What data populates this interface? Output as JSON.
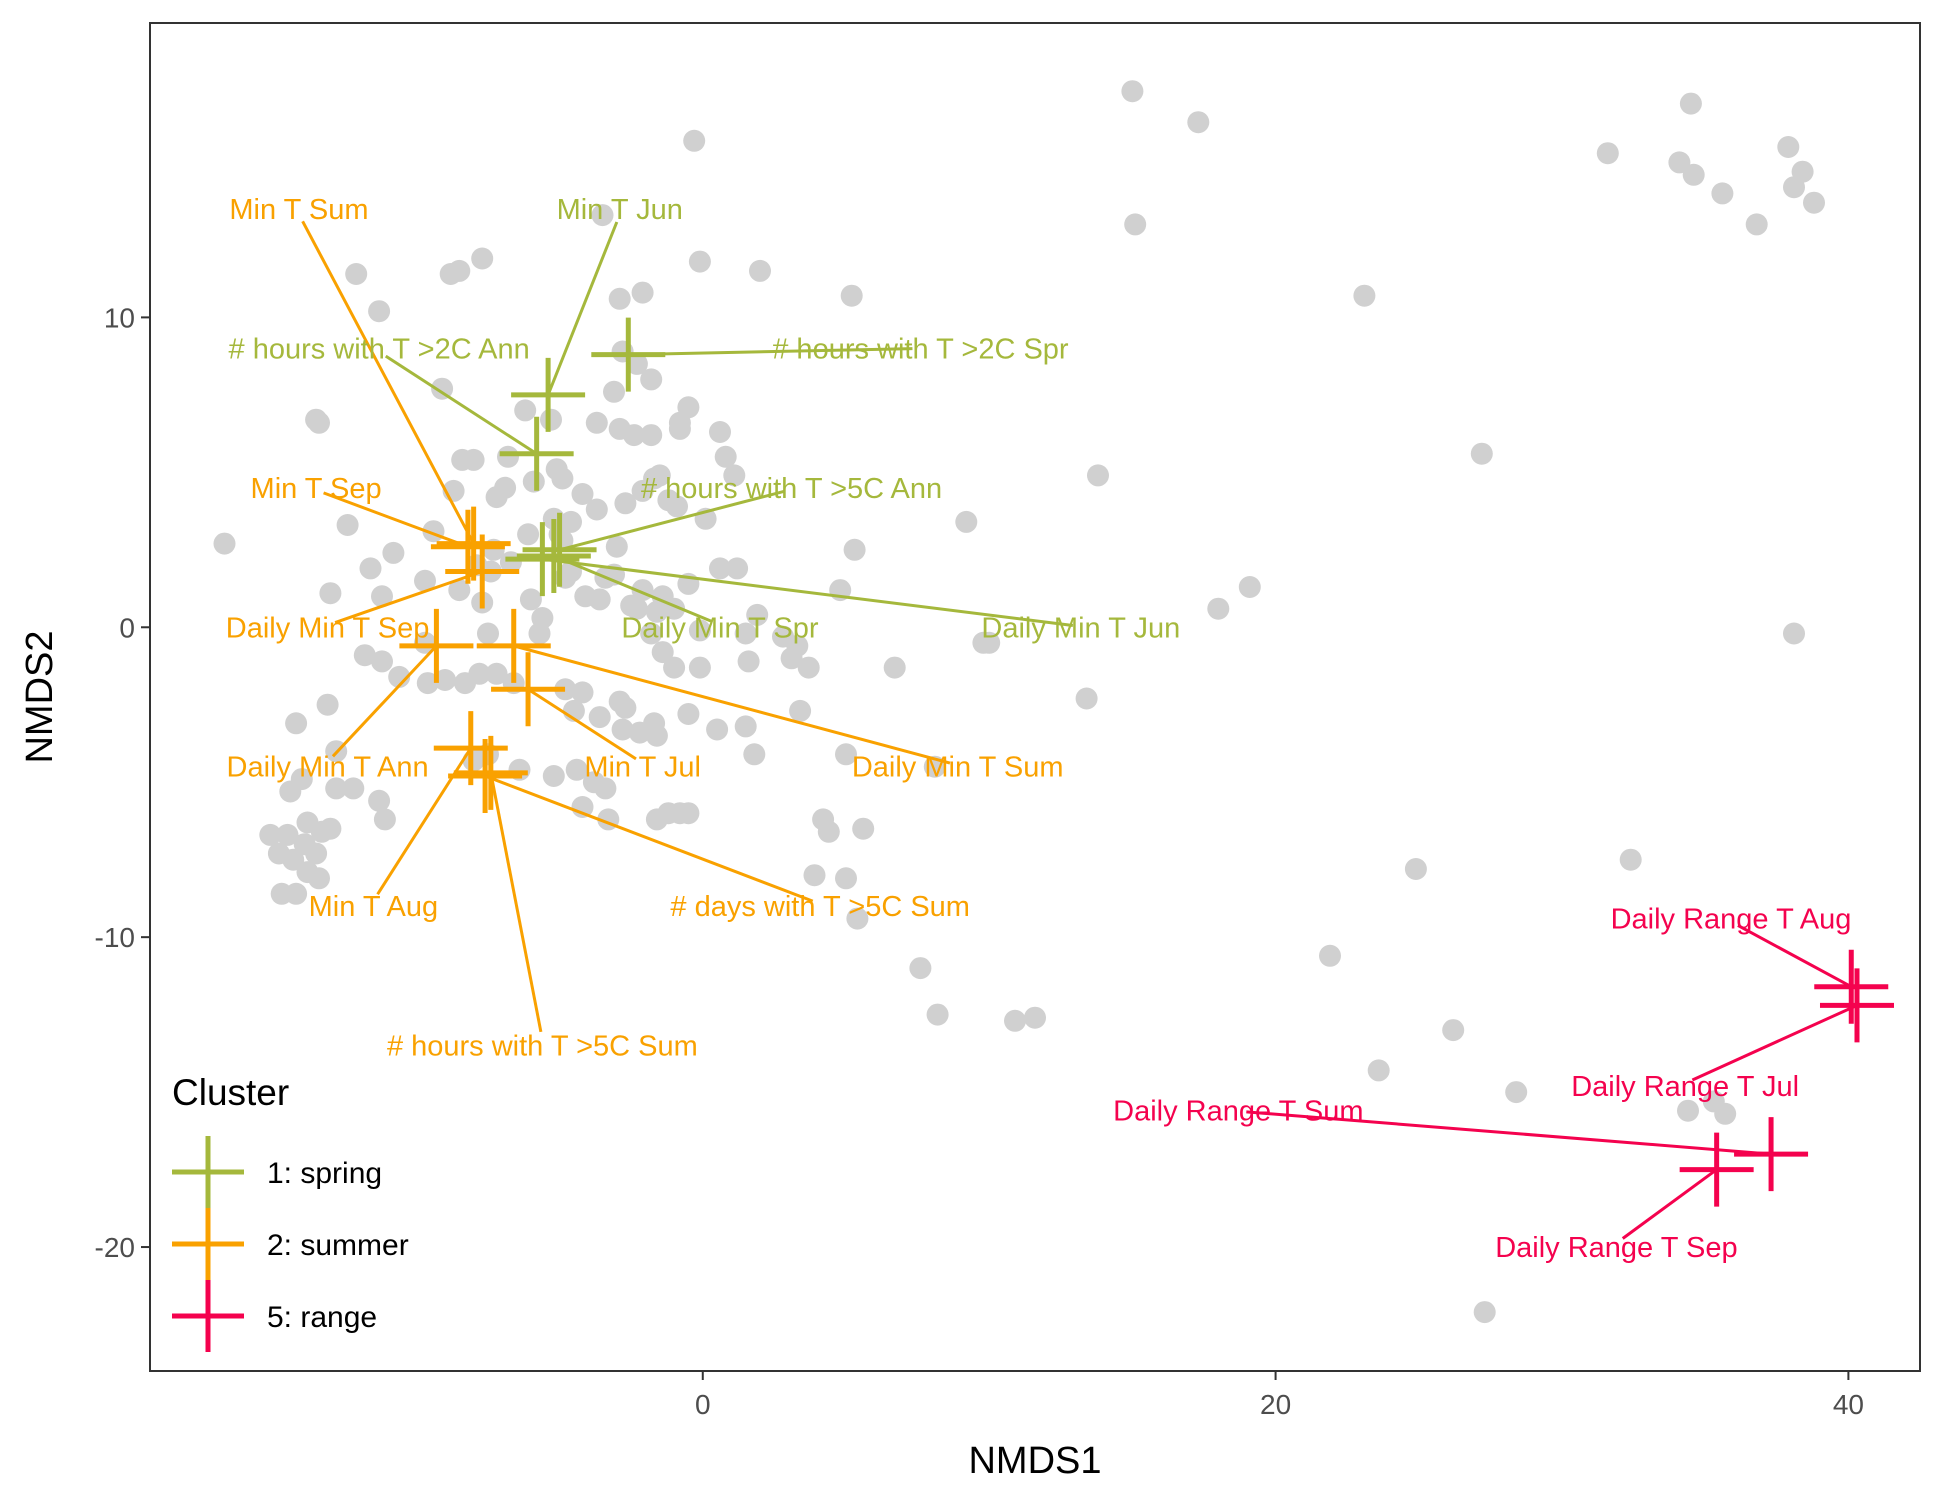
{
  "chart_data": {
    "type": "scatter",
    "title": "",
    "xlabel": "NMDS1",
    "ylabel": "NMDS2",
    "xlim": [
      -19.3,
      42.5
    ],
    "ylim": [
      -24,
      19.5
    ],
    "xticks": [
      0,
      20,
      40
    ],
    "yticks": [
      10,
      0,
      -10,
      -20
    ],
    "grid": false,
    "legend": {
      "title": "Cluster",
      "placement": "bottom-left",
      "entries": [
        {
          "label": "1: spring",
          "color": "#a5b83c"
        },
        {
          "label": "2: summer",
          "color": "#f9a100"
        },
        {
          "label": "5: range",
          "color": "#f4024e"
        }
      ]
    },
    "site_points": {
      "color": "#d0d0d0",
      "points": [
        [
          -2.1,
          10.8
        ],
        [
          -2.9,
          10.6
        ],
        [
          -1.8,
          8.0
        ],
        [
          -2.3,
          8.5
        ],
        [
          -2.8,
          8.9
        ],
        [
          -3.1,
          7.6
        ],
        [
          -3.7,
          6.6
        ],
        [
          -2.4,
          6.2
        ],
        [
          -1.8,
          6.2
        ],
        [
          -2.9,
          6.4
        ],
        [
          -0.8,
          6.6
        ],
        [
          -0.5,
          7.1
        ],
        [
          0.6,
          6.3
        ],
        [
          0.8,
          5.5
        ],
        [
          -0.8,
          6.4
        ],
        [
          -1.5,
          4.9
        ],
        [
          -1.7,
          4.8
        ],
        [
          -2.1,
          4.4
        ],
        [
          -2.7,
          4.0
        ],
        [
          -1.2,
          4.1
        ],
        [
          -0.9,
          3.9
        ],
        [
          0.1,
          3.5
        ],
        [
          1.1,
          4.9
        ],
        [
          -3.7,
          3.8
        ],
        [
          -3.0,
          2.6
        ],
        [
          -5.3,
          6.7
        ],
        [
          -6.2,
          7.0
        ],
        [
          -6.8,
          5.5
        ],
        [
          -5.1,
          5.1
        ],
        [
          -4.9,
          4.8
        ],
        [
          -5.9,
          4.7
        ],
        [
          -6.9,
          4.5
        ],
        [
          -7.2,
          4.2
        ],
        [
          -8.0,
          5.4
        ],
        [
          -8.4,
          5.4
        ],
        [
          -8.7,
          4.4
        ],
        [
          -9.4,
          3.1
        ],
        [
          -10.8,
          2.4
        ],
        [
          -11.6,
          1.9
        ],
        [
          -12.4,
          3.3
        ],
        [
          -13.0,
          1.1
        ],
        [
          -9.7,
          1.5
        ],
        [
          -8.5,
          1.2
        ],
        [
          -7.7,
          0.8
        ],
        [
          -6.0,
          0.9
        ],
        [
          -5.6,
          0.3
        ],
        [
          -4.1,
          1.0
        ],
        [
          -3.6,
          0.9
        ],
        [
          -2.5,
          0.7
        ],
        [
          -2.3,
          0.6
        ],
        [
          -1.6,
          0.5
        ],
        [
          -1.0,
          0.6
        ],
        [
          -4.9,
          2.8
        ],
        [
          -5.0,
          3.0
        ],
        [
          -5.2,
          3.5
        ],
        [
          -4.6,
          3.4
        ],
        [
          -4.2,
          4.3
        ],
        [
          -6.1,
          3.0
        ],
        [
          -6.7,
          2.1
        ],
        [
          -7.4,
          1.8
        ],
        [
          -7.9,
          2.0
        ],
        [
          -7.3,
          2.5
        ],
        [
          -4.8,
          1.6
        ],
        [
          -4.6,
          1.8
        ],
        [
          -3.4,
          1.6
        ],
        [
          -3.1,
          1.7
        ],
        [
          -2.1,
          1.2
        ],
        [
          -1.4,
          1.0
        ],
        [
          -0.5,
          1.4
        ],
        [
          0.6,
          1.9
        ],
        [
          1.2,
          1.9
        ],
        [
          1.9,
          0.4
        ],
        [
          1.5,
          -0.2
        ],
        [
          -0.1,
          -0.1
        ],
        [
          -1.8,
          -0.2
        ],
        [
          -1.4,
          -0.8
        ],
        [
          -1.0,
          -1.3
        ],
        [
          -0.1,
          -1.3
        ],
        [
          -2.7,
          -2.6
        ],
        [
          -2.9,
          -2.4
        ],
        [
          -3.6,
          -2.9
        ],
        [
          -4.2,
          -2.1
        ],
        [
          -4.5,
          -2.7
        ],
        [
          -4.8,
          -2.0
        ],
        [
          -6.6,
          -1.8
        ],
        [
          -7.2,
          -1.5
        ],
        [
          -7.8,
          -1.5
        ],
        [
          -8.3,
          -1.8
        ],
        [
          -9.0,
          -1.7
        ],
        [
          -9.6,
          -1.8
        ],
        [
          -10.6,
          -1.6
        ],
        [
          -11.2,
          -1.1
        ],
        [
          -11.8,
          -0.9
        ],
        [
          -13.1,
          -2.5
        ],
        [
          -12.8,
          -4.0
        ],
        [
          -14.2,
          -3.1
        ],
        [
          -14.0,
          -4.9
        ],
        [
          -14.4,
          -5.3
        ],
        [
          -12.2,
          -5.2
        ],
        [
          -12.8,
          -5.2
        ],
        [
          -11.3,
          -5.6
        ],
        [
          -11.1,
          -6.2
        ],
        [
          -13.3,
          -6.6
        ],
        [
          -13.8,
          -6.3
        ],
        [
          -14.5,
          -6.7
        ],
        [
          -14.8,
          -7.3
        ],
        [
          -14.3,
          -7.5
        ],
        [
          -13.9,
          -7.0
        ],
        [
          -13.5,
          -7.3
        ],
        [
          -13.8,
          -7.9
        ],
        [
          -14.2,
          -8.6
        ],
        [
          -14.7,
          -8.6
        ],
        [
          -13.4,
          -8.1
        ],
        [
          -13.0,
          -6.5
        ],
        [
          -15.1,
          -6.7
        ],
        [
          -8.0,
          -4.3
        ],
        [
          -7.5,
          -4.1
        ],
        [
          -6.4,
          -4.6
        ],
        [
          -5.2,
          -4.8
        ],
        [
          -4.4,
          -4.6
        ],
        [
          -3.8,
          -5.0
        ],
        [
          -3.4,
          -5.2
        ],
        [
          -3.3,
          -6.2
        ],
        [
          -4.2,
          -5.8
        ],
        [
          -2.8,
          -3.3
        ],
        [
          -2.2,
          -3.4
        ],
        [
          -1.6,
          -3.5
        ],
        [
          -1.7,
          -3.1
        ],
        [
          -0.5,
          -2.8
        ],
        [
          0.5,
          -3.3
        ],
        [
          1.5,
          -3.2
        ],
        [
          1.8,
          -4.1
        ],
        [
          3.4,
          -2.7
        ],
        [
          5.0,
          -4.1
        ],
        [
          3.1,
          -1.0
        ],
        [
          3.7,
          -1.3
        ],
        [
          2.8,
          -0.3
        ],
        [
          3.3,
          -0.6
        ],
        [
          1.6,
          -1.1
        ],
        [
          -1.6,
          -6.2
        ],
        [
          -1.2,
          -6.0
        ],
        [
          -0.8,
          -6.0
        ],
        [
          -0.5,
          -6.0
        ],
        [
          4.2,
          -6.2
        ],
        [
          4.4,
          -6.6
        ],
        [
          5.6,
          -6.5
        ],
        [
          6.7,
          -1.3
        ],
        [
          8.1,
          -4.5
        ],
        [
          9.8,
          -0.5
        ],
        [
          10.0,
          -0.5
        ],
        [
          13.4,
          -2.3
        ],
        [
          13.8,
          4.9
        ],
        [
          9.2,
          3.4
        ],
        [
          5.3,
          2.5
        ],
        [
          4.8,
          1.2
        ],
        [
          3.9,
          -8.0
        ],
        [
          5.0,
          -8.1
        ],
        [
          5.4,
          -9.4
        ],
        [
          7.6,
          -11.0
        ],
        [
          8.2,
          -12.5
        ],
        [
          10.9,
          -12.7
        ],
        [
          11.6,
          -12.6
        ],
        [
          23.6,
          -14.3
        ],
        [
          26.2,
          -13.0
        ],
        [
          21.9,
          -10.6
        ],
        [
          24.9,
          -7.8
        ],
        [
          28.4,
          -15.0
        ],
        [
          27.3,
          -22.1
        ],
        [
          32.4,
          -7.5
        ],
        [
          34.4,
          -15.6
        ],
        [
          35.3,
          -15.3
        ],
        [
          35.7,
          -15.7
        ],
        [
          38.1,
          -0.2
        ],
        [
          18.0,
          0.6
        ],
        [
          19.1,
          1.3
        ],
        [
          27.2,
          5.6
        ],
        [
          23.1,
          10.7
        ],
        [
          15.1,
          13.0
        ],
        [
          17.3,
          16.3
        ],
        [
          15.0,
          17.3
        ],
        [
          31.6,
          15.3
        ],
        [
          34.5,
          16.9
        ],
        [
          34.1,
          15.0
        ],
        [
          34.6,
          14.6
        ],
        [
          35.6,
          14.0
        ],
        [
          36.8,
          13.0
        ],
        [
          37.9,
          15.5
        ],
        [
          38.4,
          14.7
        ],
        [
          38.1,
          14.2
        ],
        [
          38.8,
          13.7
        ],
        [
          -0.3,
          15.7
        ],
        [
          -0.1,
          11.8
        ],
        [
          -3.5,
          13.3
        ],
        [
          -7.7,
          11.9
        ],
        [
          -8.5,
          11.5
        ],
        [
          -8.8,
          11.4
        ],
        [
          -11.3,
          10.2
        ],
        [
          -12.1,
          11.4
        ],
        [
          -13.4,
          6.6
        ],
        [
          -13.5,
          6.7
        ],
        [
          -9.1,
          7.7
        ],
        [
          -16.7,
          2.7
        ],
        [
          -11.2,
          1.0
        ],
        [
          -9.7,
          -0.5
        ],
        [
          -7.5,
          -0.2
        ],
        [
          -5.7,
          -0.2
        ],
        [
          2.0,
          11.5
        ],
        [
          5.2,
          10.7
        ]
      ]
    },
    "variables": [
      {
        "label": "Min T Jun",
        "cluster": "1: spring",
        "x": -5.4,
        "y": 7.5,
        "lx": -2.9,
        "ly": 13.5
      },
      {
        "label": "# hours with T >2C Ann",
        "cluster": "1: spring",
        "x": -5.8,
        "y": 5.6,
        "lx": -11.3,
        "ly": 9.0
      },
      {
        "label": "# hours with T >2C Spr",
        "cluster": "1: spring",
        "x": -2.6,
        "y": 8.8,
        "lx": 7.6,
        "ly": 9.0
      },
      {
        "label": "# hours with T >5C Ann",
        "cluster": "1: spring",
        "x": -5.0,
        "y": 2.5,
        "lx": 3.1,
        "ly": 4.5
      },
      {
        "label": "Daily Min T Spr",
        "cluster": "1: spring",
        "x": -5.2,
        "y": 2.3,
        "lx": 0.6,
        "ly": 0.0
      },
      {
        "label": "Daily Min T Jun",
        "cluster": "1: spring",
        "x": -5.6,
        "y": 2.2,
        "lx": 13.2,
        "ly": 0.0
      },
      {
        "label": "Min T Sum",
        "cluster": "2: summer",
        "x": -8.0,
        "y": 2.7,
        "lx": -14.1,
        "ly": 13.5
      },
      {
        "label": "Min T Sep",
        "cluster": "2: summer",
        "x": -8.2,
        "y": 2.6,
        "lx": -13.5,
        "ly": 4.5
      },
      {
        "label": "Daily Min T Sep",
        "cluster": "2: summer",
        "x": -7.7,
        "y": 1.8,
        "lx": -13.1,
        "ly": 0.0
      },
      {
        "label": "Daily Min T Ann",
        "cluster": "2: summer",
        "x": -9.3,
        "y": -0.6,
        "lx": -13.1,
        "ly": -4.5
      },
      {
        "label": "Min T Jul",
        "cluster": "2: summer",
        "x": -6.1,
        "y": -2.0,
        "lx": -2.1,
        "ly": -4.5
      },
      {
        "label": "Daily Min T Sum",
        "cluster": "2: summer",
        "x": -6.6,
        "y": -0.6,
        "lx": 8.9,
        "ly": -4.5
      },
      {
        "label": "Min T Aug",
        "cluster": "2: summer",
        "x": -8.1,
        "y": -3.9,
        "lx": -11.5,
        "ly": -9.0
      },
      {
        "label": "# days with T >5C Sum",
        "cluster": "2: summer",
        "x": -7.6,
        "y": -4.8,
        "lx": 4.1,
        "ly": -9.0
      },
      {
        "label": "# hours with T >5C Sum",
        "cluster": "2: summer",
        "x": -7.4,
        "y": -4.7,
        "lx": -5.6,
        "ly": -13.5
      },
      {
        "label": "Daily Range T Aug",
        "cluster": "5: range",
        "x": 40.1,
        "y": -11.6,
        "lx": 35.9,
        "ly": -9.4
      },
      {
        "label": "Daily Range T Jul",
        "cluster": "5: range",
        "x": 40.3,
        "y": -12.2,
        "lx": 34.3,
        "ly": -14.8
      },
      {
        "label": "Daily Range T Sum",
        "cluster": "5: range",
        "x": 37.3,
        "y": -17.0,
        "lx": 18.7,
        "ly": -15.6
      },
      {
        "label": "Daily Range T Sep",
        "cluster": "5: range",
        "x": 35.4,
        "y": -17.5,
        "lx": 31.9,
        "ly": -20.0
      }
    ]
  }
}
